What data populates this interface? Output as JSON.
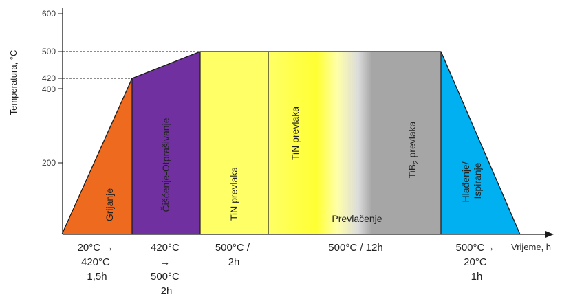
{
  "diagram": {
    "y_axis_label": "Temperatura, °C",
    "x_axis_label": "Vrijeme, h",
    "y_ticks": [
      "600",
      "500",
      "420",
      "400",
      "200"
    ],
    "stages": [
      {
        "label": "Grijanje",
        "color": "#ed6a1f"
      },
      {
        "label": "Čišćenje-Otprašivanje",
        "color": "#7030a0"
      },
      {
        "label": "TiN prevlaka",
        "color": "#ffff66"
      },
      {
        "label": "TiN prevlaka",
        "color": "#ffff66"
      },
      {
        "label": "TiB2 prevlaka",
        "color": "#a6a6a6",
        "subscript_suffix": "2",
        "base": "TiB",
        "rest": " prevlaka"
      },
      {
        "label": "Hlađenje/ Ispiranje",
        "color": "#00b0f0",
        "lines": [
          "Hlađenje/",
          "Ispiranje"
        ]
      }
    ],
    "coating_label": "Prevlačenje",
    "steps": [
      {
        "lines": [
          "20°C →",
          "420°C",
          "1,5h"
        ]
      },
      {
        "lines": [
          "420°C",
          "→",
          "500°C",
          "2h"
        ]
      },
      {
        "lines": [
          "500°C /",
          "2h"
        ]
      },
      {
        "lines": [
          "500°C / 12h"
        ]
      },
      {
        "lines": [
          "500°C→",
          "20°C",
          "1h"
        ]
      }
    ]
  }
}
